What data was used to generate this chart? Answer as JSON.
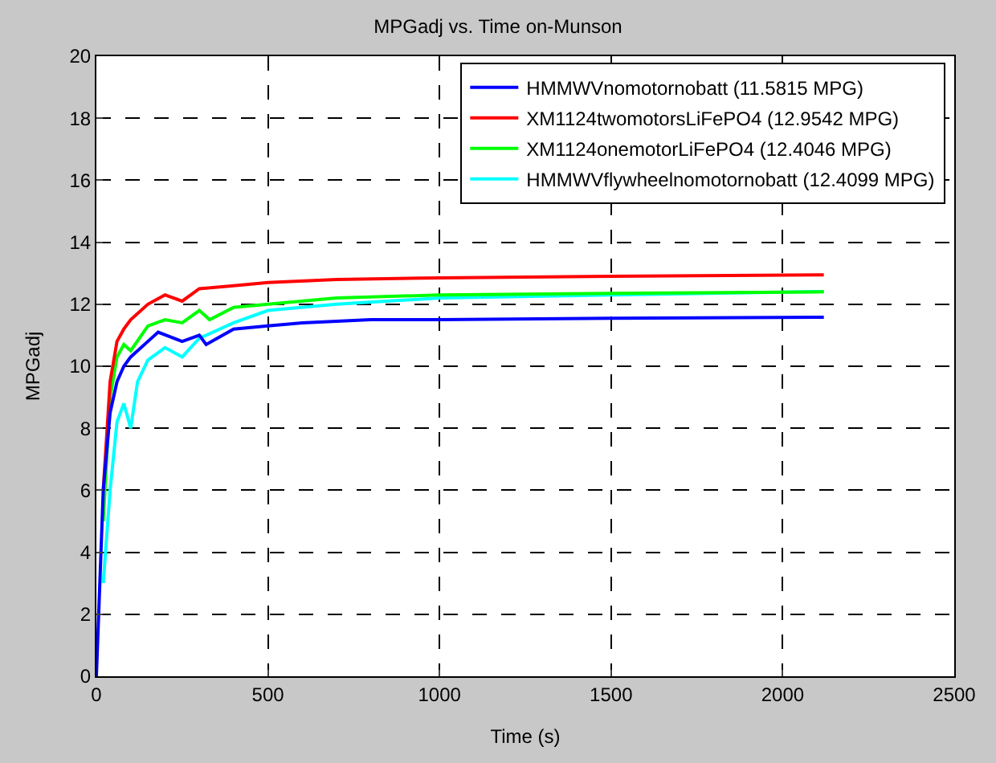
{
  "chart_data": {
    "type": "line",
    "title": "MPGadj vs. Time on-Munson",
    "xlabel": "Time (s)",
    "ylabel": "MPGadj",
    "xlim": [
      0,
      2500
    ],
    "xticks": [
      0,
      500,
      1000,
      1500,
      2000,
      2500
    ],
    "ylim": [
      0,
      20
    ],
    "yticks": [
      0,
      2,
      4,
      6,
      8,
      10,
      12,
      14,
      16,
      18,
      20
    ],
    "grid": true,
    "legend": "top right",
    "line_style": "solid",
    "series": [
      {
        "name": "HMMWVnomotornobatt (11.5815 MPG)",
        "color": "#0000ff",
        "x": [
          0,
          10,
          20,
          40,
          60,
          80,
          100,
          150,
          180,
          250,
          300,
          320,
          400,
          500,
          600,
          800,
          1000,
          1500,
          2120
        ],
        "values": [
          0,
          3,
          6,
          8.5,
          9.5,
          10,
          10.3,
          10.8,
          11.1,
          10.8,
          11.0,
          10.7,
          11.2,
          11.3,
          11.4,
          11.5,
          11.5,
          11.55,
          11.58
        ]
      },
      {
        "name": "XM1124twomotorsLiFePO4 (12.9542 MPG)",
        "color": "#ff0000",
        "x": [
          20,
          40,
          60,
          80,
          100,
          150,
          200,
          250,
          300,
          400,
          500,
          700,
          1000,
          1500,
          2120
        ],
        "values": [
          6,
          9.5,
          10.8,
          11.2,
          11.5,
          12,
          12.3,
          12.1,
          12.5,
          12.6,
          12.7,
          12.8,
          12.85,
          12.9,
          12.95
        ]
      },
      {
        "name": "XM1124onemotorLiFePO4 (12.4046 MPG)",
        "color": "#00ff00",
        "x": [
          20,
          40,
          60,
          80,
          100,
          150,
          200,
          250,
          300,
          330,
          400,
          500,
          700,
          1000,
          1500,
          2120
        ],
        "values": [
          5,
          9,
          10.3,
          10.7,
          10.5,
          11.3,
          11.5,
          11.4,
          11.8,
          11.5,
          11.9,
          12.0,
          12.2,
          12.3,
          12.35,
          12.4
        ]
      },
      {
        "name": "HMMWVflywheelnomotornobatt (12.4099 MPG)",
        "color": "#00ffff",
        "x": [
          20,
          40,
          60,
          80,
          100,
          120,
          150,
          200,
          250,
          300,
          400,
          500,
          700,
          1000,
          1500,
          2120
        ],
        "values": [
          3,
          6,
          8.2,
          8.8,
          8.0,
          9.5,
          10.2,
          10.6,
          10.3,
          10.9,
          11.4,
          11.8,
          12.0,
          12.2,
          12.3,
          12.41
        ]
      }
    ]
  }
}
